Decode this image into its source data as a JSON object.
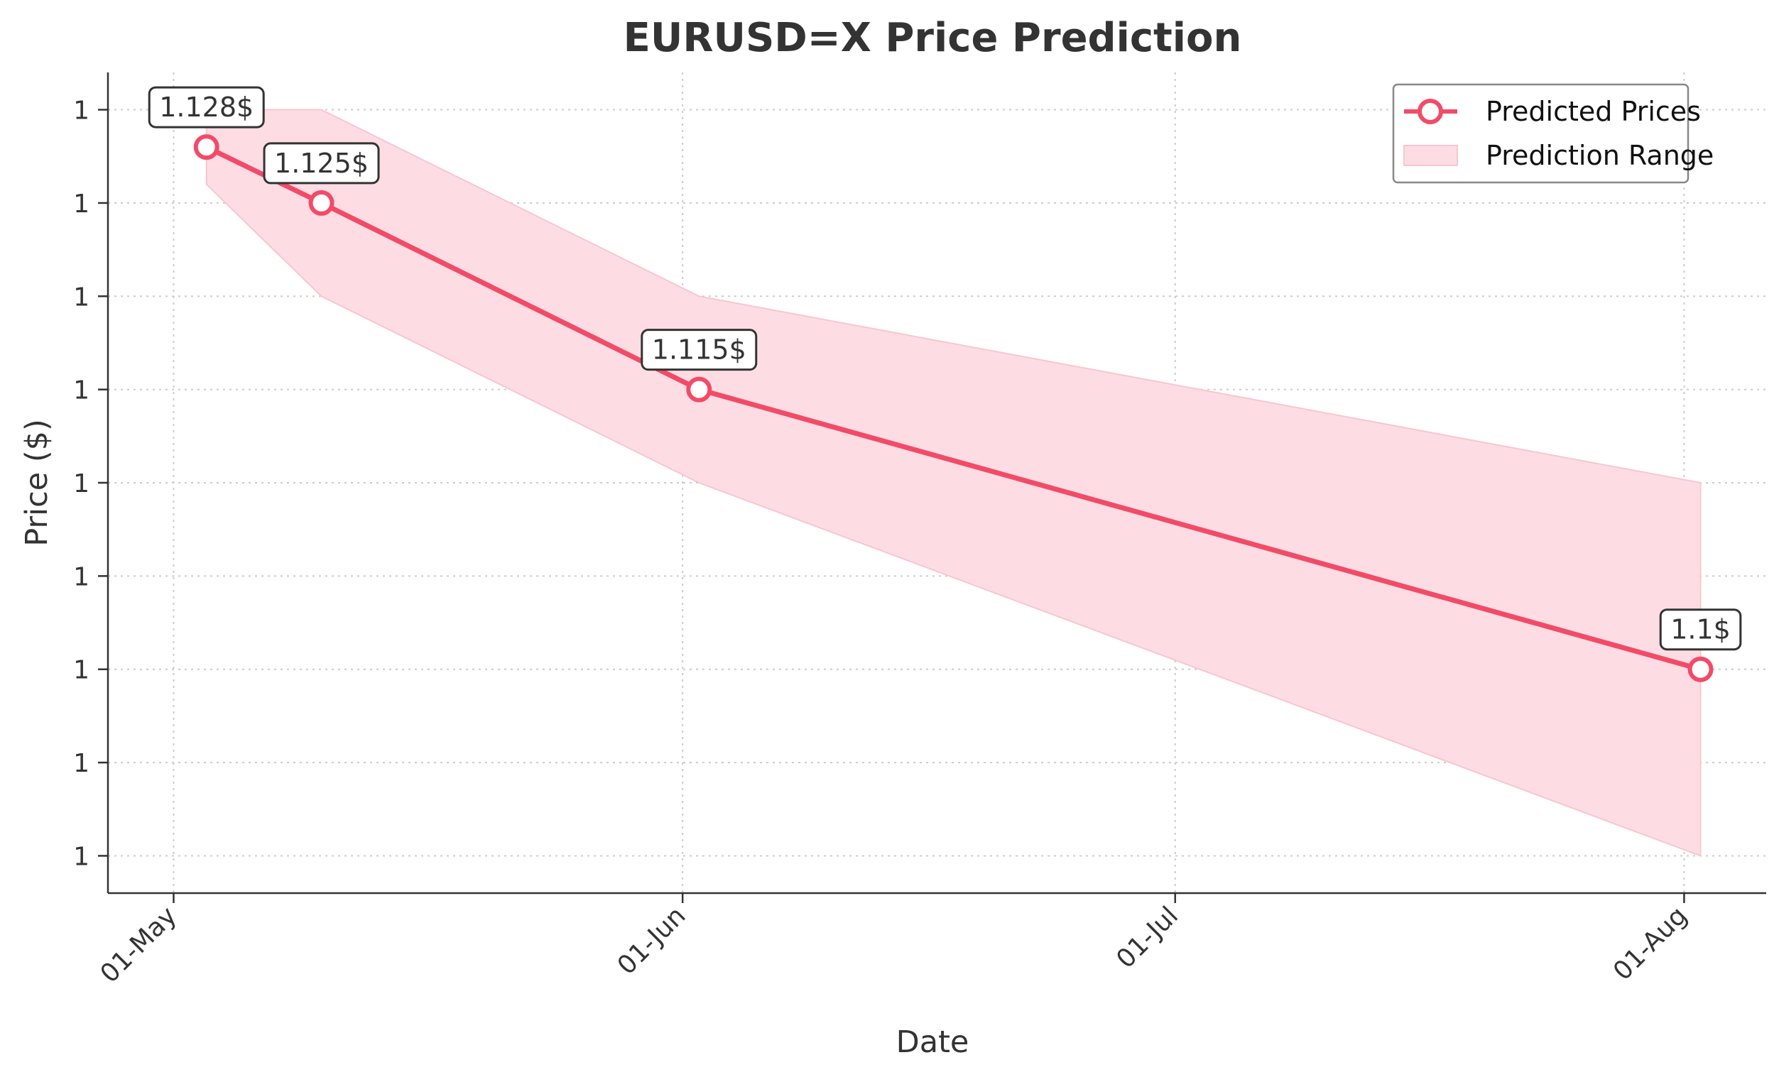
{
  "chart_data": {
    "type": "line",
    "title": "EURUSD=X Price Prediction",
    "xlabel": "Date",
    "ylabel": "Price ($)",
    "x_ticks": [
      {
        "date": "2024-05-01",
        "label": "01-May"
      },
      {
        "date": "2024-06-01",
        "label": "01-Jun"
      },
      {
        "date": "2024-07-01",
        "label": "01-Jul"
      },
      {
        "date": "2024-08-01",
        "label": "01-Aug"
      }
    ],
    "y_ticks": [
      {
        "value": 1.13,
        "label": "1"
      },
      {
        "value": 1.125,
        "label": "1"
      },
      {
        "value": 1.12,
        "label": "1"
      },
      {
        "value": 1.115,
        "label": "1"
      },
      {
        "value": 1.11,
        "label": "1"
      },
      {
        "value": 1.105,
        "label": "1"
      },
      {
        "value": 1.1,
        "label": "1"
      },
      {
        "value": 1.095,
        "label": "1"
      },
      {
        "value": 1.09,
        "label": "1"
      }
    ],
    "xlim": [
      "2024-04-27",
      "2024-08-06"
    ],
    "ylim": [
      1.088,
      1.132
    ],
    "grid": true,
    "legend_position": "top-right",
    "colors": {
      "line": "#f24b68",
      "band": "#fddde3"
    },
    "series": [
      {
        "name": "Predicted Prices",
        "points": [
          {
            "date": "2024-05-03",
            "value": 1.128
          },
          {
            "date": "2024-05-10",
            "value": 1.125
          },
          {
            "date": "2024-06-02",
            "value": 1.115
          },
          {
            "date": "2024-08-02",
            "value": 1.1
          }
        ]
      }
    ],
    "range": {
      "name": "Prediction Range",
      "points": [
        {
          "date": "2024-05-03",
          "low": 1.126,
          "high": 1.13
        },
        {
          "date": "2024-05-10",
          "low": 1.12,
          "high": 1.13
        },
        {
          "date": "2024-06-02",
          "low": 1.11,
          "high": 1.12
        },
        {
          "date": "2024-08-02",
          "low": 1.09,
          "high": 1.11
        }
      ]
    },
    "annotations": [
      {
        "date": "2024-05-03",
        "value": 1.128,
        "label": "1.128$"
      },
      {
        "date": "2024-05-10",
        "value": 1.125,
        "label": "1.125$"
      },
      {
        "date": "2024-06-02",
        "value": 1.115,
        "label": "1.115$"
      },
      {
        "date": "2024-08-02",
        "value": 1.1,
        "label": "1.1$"
      }
    ]
  }
}
